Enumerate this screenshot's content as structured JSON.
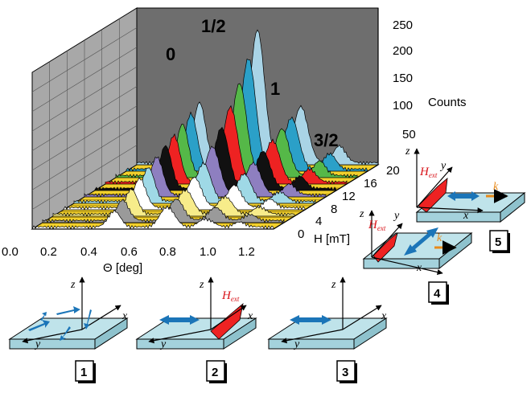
{
  "plot3d": {
    "z_ticks": [
      "250",
      "200",
      "150",
      "100",
      "50"
    ],
    "z_label": "Counts",
    "theta_ticks": [
      "0.0",
      "0.2",
      "0.4",
      "0.6",
      "0.8",
      "1.0",
      "1.2"
    ],
    "theta_label": "Θ [deg]",
    "h_ticks": [
      "20",
      "16",
      "12",
      "8",
      "4",
      "0"
    ],
    "h_label": "H [mT]",
    "peak_labels": [
      "0",
      "1/2",
      "1",
      "3/2"
    ],
    "colors": {
      "back_wall": "#6e6e6e",
      "side_wall": "#a8a8a8",
      "floor": "#f2d02c",
      "spectra": [
        "#ffffff",
        "#9a9a9a",
        "#f7ec8a",
        "#ffffff",
        "#9fd9e6",
        "#8e7fc0",
        "#111111",
        "#ee2222",
        "#55b848",
        "#2ba0c8",
        "#a9d4e6"
      ]
    }
  },
  "diagrams": [
    {
      "id": "1",
      "axes": [
        "z",
        "x",
        "y"
      ],
      "h_ext": ""
    },
    {
      "id": "2",
      "axes": [
        "z",
        "x",
        "y"
      ],
      "h_ext": "H",
      "h_ext_sub": "ext"
    },
    {
      "id": "3",
      "axes": [
        "z",
        "x",
        "y"
      ],
      "h_ext": ""
    },
    {
      "id": "4",
      "axes": [
        "z",
        "y",
        "x"
      ],
      "h_ext": "H",
      "h_ext_sub": "ext",
      "k_label": "k"
    },
    {
      "id": "5",
      "axes": [
        "z",
        "y",
        "x"
      ],
      "h_ext": "H",
      "h_ext_sub": "ext",
      "k_label": "k"
    }
  ]
}
